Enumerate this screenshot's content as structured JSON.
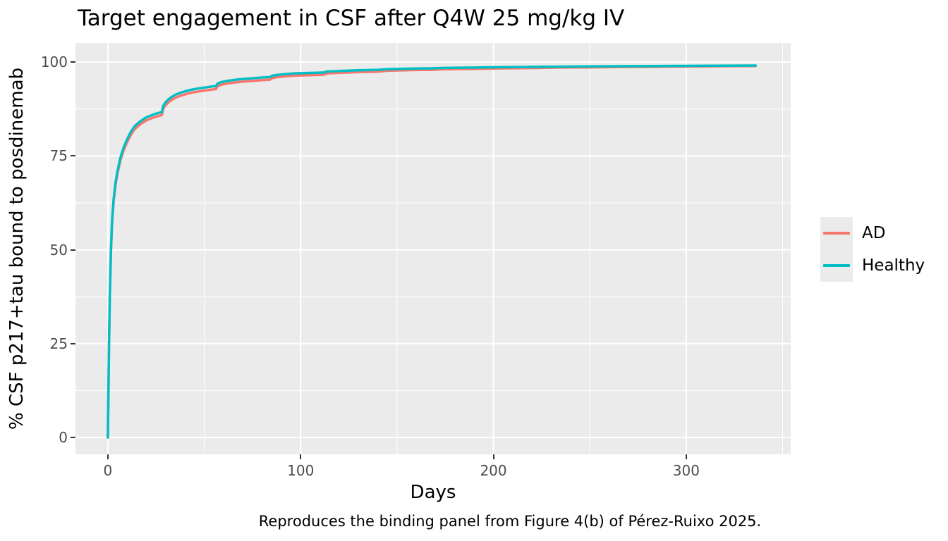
{
  "title": "Target engagement in CSF after Q4W 25 mg/kg IV",
  "caption": "Reproduces the binding panel from Figure 4(b) of Pérez-Ruixo 2025.",
  "theme": {
    "page_bg": "#FFFFFF",
    "panel_bg": "#EBEBEB",
    "grid_color": "#FFFFFF",
    "tick_label_color": "#4D4D4D",
    "tick_mark_color": "#333333",
    "text_color": "#000000"
  },
  "chart_data": {
    "type": "line",
    "title": "Target engagement in CSF after Q4W 25 mg/kg IV",
    "xlabel": "Days",
    "ylabel": "% CSF p217+tau bound to posdinemab",
    "grid": true,
    "legend_position": "right",
    "xlim": [
      -16.8,
      354.2
    ],
    "ylim": [
      -4.5,
      105.1
    ],
    "x_ticks": [
      0,
      100,
      200,
      300
    ],
    "x_minor_ticks": [
      50,
      150,
      250,
      350
    ],
    "y_ticks": [
      0,
      25,
      50,
      75,
      100
    ],
    "y_minor_ticks": [
      12.5,
      37.5,
      62.5,
      87.5
    ],
    "dosing_note": "doses every 28 days, 0 to 336",
    "x": [
      0,
      0.3,
      0.6,
      1,
      1.6,
      2.2,
      3,
      4,
      5,
      6.5,
      8,
      10,
      12,
      14,
      17,
      20,
      24,
      28,
      28.6,
      29.5,
      31,
      33,
      35,
      38,
      42,
      46,
      50,
      54,
      56,
      57,
      59,
      62,
      66,
      70,
      75,
      80,
      84,
      85.5,
      88,
      92,
      97,
      103,
      110,
      112,
      114,
      120,
      128,
      136,
      140,
      145,
      152,
      160,
      168,
      174,
      182,
      190,
      196,
      205,
      215,
      224,
      235,
      245,
      252,
      265,
      275,
      280,
      290,
      300,
      308,
      318,
      328,
      336
    ],
    "series": [
      {
        "name": "AD",
        "color": "#F8766D",
        "values": [
          0,
          11.9,
          24.8,
          37.2,
          49.6,
          57.5,
          62.95,
          67.4,
          70.35,
          73.8,
          76.25,
          78.7,
          80.7,
          82.2,
          83.5,
          84.5,
          85.3,
          85.9,
          87.4,
          88.2,
          89.1,
          89.9,
          90.5,
          91.1,
          91.7,
          92.1,
          92.4,
          92.7,
          92.8,
          93.6,
          94.0,
          94.3,
          94.6,
          94.8,
          95.0,
          95.2,
          95.3,
          95.8,
          96.0,
          96.2,
          96.4,
          96.5,
          96.6,
          96.65,
          97.0,
          97.15,
          97.3,
          97.4,
          97.45,
          97.7,
          97.8,
          97.9,
          97.95,
          98.1,
          98.15,
          98.2,
          98.25,
          98.35,
          98.4,
          98.45,
          98.55,
          98.58,
          98.61,
          98.7,
          98.72,
          98.74,
          98.79,
          98.82,
          98.84,
          98.9,
          98.93,
          98.95
        ]
      },
      {
        "name": "Healthy",
        "color": "#00BFC4",
        "values": [
          0,
          12,
          25,
          37.5,
          50,
          58,
          63.5,
          68,
          71,
          74.5,
          77,
          79.5,
          81.5,
          83,
          84.3,
          85.3,
          86.1,
          86.7,
          88.2,
          89.0,
          89.9,
          90.7,
          91.3,
          91.9,
          92.5,
          92.9,
          93.2,
          93.5,
          93.6,
          94.3,
          94.7,
          95.0,
          95.3,
          95.5,
          95.7,
          95.9,
          96.0,
          96.4,
          96.6,
          96.8,
          97.0,
          97.1,
          97.2,
          97.25,
          97.5,
          97.65,
          97.8,
          97.9,
          97.95,
          98.1,
          98.2,
          98.3,
          98.35,
          98.45,
          98.5,
          98.55,
          98.6,
          98.65,
          98.7,
          98.75,
          98.8,
          98.83,
          98.86,
          98.9,
          98.92,
          98.94,
          98.97,
          99.0,
          99.02,
          99.05,
          99.08,
          99.1
        ]
      }
    ]
  }
}
